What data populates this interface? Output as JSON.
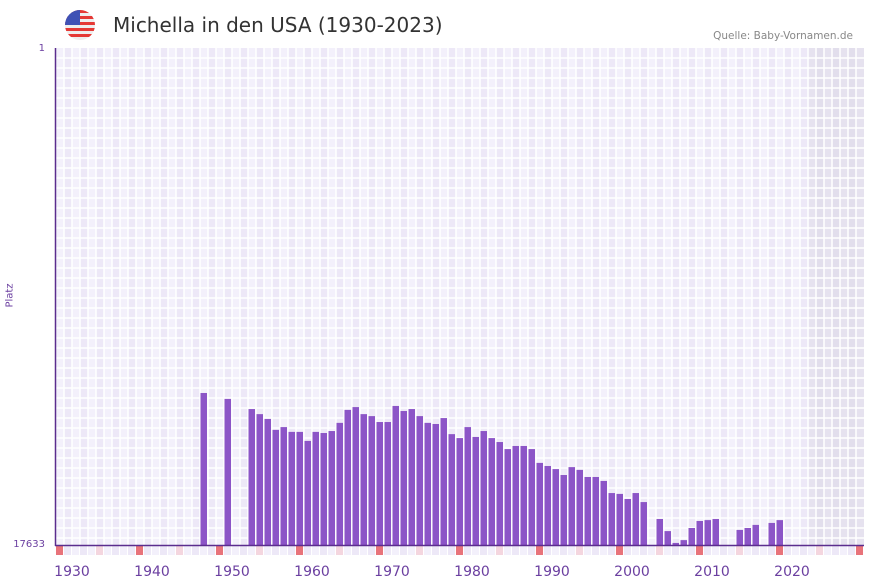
{
  "header": {
    "title": "Michella in den USA (1930-2023)",
    "source": "Quelle: Baby-Vornamen.de",
    "flag_icon": "usa-flag-icon"
  },
  "chart_data": {
    "type": "bar",
    "title": "Michella in den USA (1930-2023)",
    "xlabel": "",
    "ylabel": "Platz",
    "y_tick_labels": [
      "1",
      "17633"
    ],
    "ylim": [
      1,
      17633
    ],
    "y_inverted": true,
    "xlim": [
      1928,
      2028
    ],
    "x_tick_labels": [
      "1930",
      "1940",
      "1950",
      "1960",
      "1970",
      "1980",
      "1990",
      "2000",
      "2010",
      "2020"
    ],
    "x_ticks": [
      1930,
      1940,
      1950,
      1960,
      1970,
      1980,
      1990,
      2000,
      2010,
      2020
    ],
    "no_data_from": 2022,
    "bar_color": "#8c55c7",
    "years": [
      1946,
      1949,
      1952,
      1953,
      1954,
      1955,
      1956,
      1957,
      1958,
      1959,
      1960,
      1961,
      1962,
      1963,
      1964,
      1965,
      1966,
      1967,
      1968,
      1969,
      1970,
      1971,
      1972,
      1973,
      1974,
      1975,
      1976,
      1977,
      1978,
      1979,
      1980,
      1981,
      1982,
      1983,
      1984,
      1985,
      1986,
      1987,
      1988,
      1989,
      1990,
      1991,
      1992,
      1993,
      1994,
      1995,
      1996,
      1997,
      1998,
      1999,
      2000,
      2001,
      2003,
      2004,
      2005,
      2006,
      2007,
      2008,
      2009,
      2010,
      2013,
      2014,
      2015,
      2017,
      2018
    ],
    "values": [
      12240,
      12450,
      12810,
      12990,
      13160,
      13550,
      13450,
      13620,
      13620,
      13940,
      13620,
      13660,
      13590,
      13300,
      12840,
      12740,
      12990,
      13060,
      13270,
      13270,
      12700,
      12880,
      12810,
      13060,
      13300,
      13340,
      13130,
      13700,
      13840,
      13450,
      13800,
      13590,
      13840,
      13980,
      14230,
      14120,
      14120,
      14230,
      14720,
      14830,
      14940,
      15150,
      14870,
      14970,
      15220,
      15220,
      15360,
      15790,
      15820,
      16000,
      15790,
      16110,
      16710,
      17140,
      17560,
      17460,
      17030,
      16780,
      16750,
      16710,
      17100,
      17030,
      16920,
      16850,
      16750
    ]
  }
}
